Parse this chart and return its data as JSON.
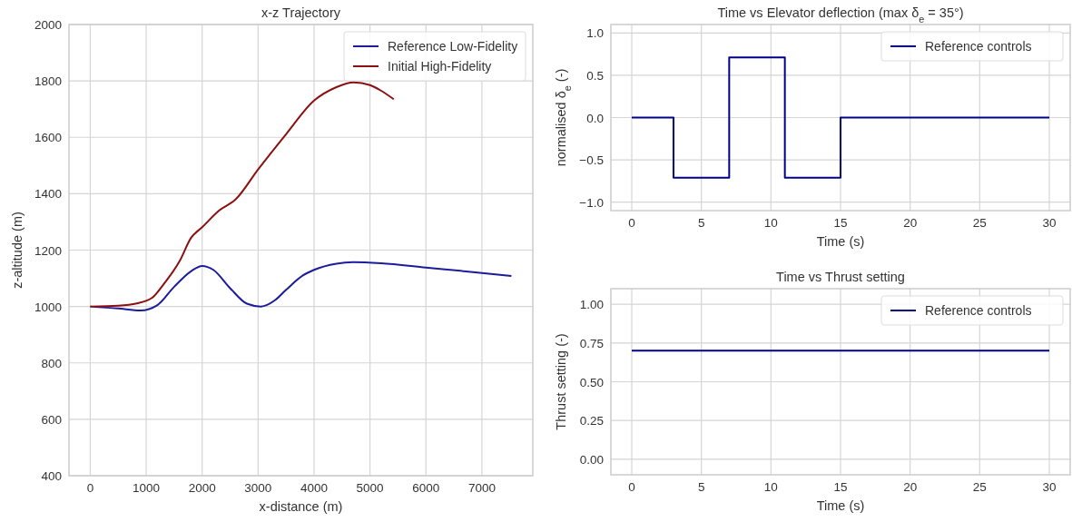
{
  "chart_data": [
    {
      "type": "line",
      "title": "x-z Trajectory",
      "xlabel": "x-distance (m)",
      "ylabel": "z-altitude (m)",
      "xlim": [
        -380,
        7910
      ],
      "ylim": [
        400,
        2000
      ],
      "xticks": [
        0,
        1000,
        2000,
        3000,
        4000,
        5000,
        6000,
        7000
      ],
      "yticks": [
        400,
        600,
        800,
        1000,
        1200,
        1400,
        1600,
        1800,
        2000
      ],
      "grid": true,
      "legend": "top right",
      "series": [
        {
          "name": "Reference Low-Fidelity",
          "color": "#1c1c9c",
          "x": [
            0,
            500,
            900,
            1200,
            1500,
            1800,
            2000,
            2200,
            2500,
            2800,
            3050,
            3300,
            3500,
            3800,
            4000,
            4400,
            4700,
            5200,
            6000,
            6800,
            7527
          ],
          "values": [
            1000,
            993,
            986,
            1005,
            1070,
            1125,
            1144,
            1130,
            1065,
            1010,
            1000,
            1022,
            1059,
            1110,
            1130,
            1152,
            1157,
            1153,
            1138,
            1123,
            1108
          ]
        },
        {
          "name": "Initial High-Fidelity",
          "color": "#8b1010",
          "x": [
            0,
            500,
            830,
            1100,
            1300,
            1600,
            1800,
            2000,
            2300,
            2600,
            3000,
            3500,
            4000,
            4400,
            4707,
            5000,
            5200,
            5424
          ],
          "values": [
            1000,
            1003,
            1011,
            1030,
            1076,
            1162,
            1243,
            1281,
            1340,
            1380,
            1486,
            1611,
            1730,
            1778,
            1795,
            1785,
            1765,
            1735
          ]
        }
      ]
    },
    {
      "type": "step",
      "title": "Time vs Elevator deflection (max δ$_{e}$ = 35°)",
      "xlabel": "Time (s)",
      "ylabel": "normalised δ$_{e}$ (-)",
      "xlim": [
        -1.5,
        31.5
      ],
      "ylim": [
        -1.1,
        1.1
      ],
      "xticks": [
        0,
        5,
        10,
        15,
        20,
        25,
        30
      ],
      "yticks": [
        {
          "value": -1,
          "label": "−1.0"
        },
        {
          "value": -0.5,
          "label": "−0.5"
        },
        {
          "value": 0,
          "label": "0.0"
        },
        {
          "value": 0.5,
          "label": "0.5"
        },
        {
          "value": 1,
          "label": "1.0"
        }
      ],
      "grid": true,
      "legend": "top right",
      "series": [
        {
          "name": "Reference controls",
          "color": "#00008b",
          "x": [
            0,
            3,
            7,
            11,
            15,
            30
          ],
          "values": [
            0,
            -0.71,
            0.71,
            -0.71,
            0,
            0
          ]
        }
      ]
    },
    {
      "type": "line",
      "title": "Time vs Thrust setting",
      "xlabel": "Time (s)",
      "ylabel": "Thrust setting (-)",
      "xlim": [
        -1.5,
        31.5
      ],
      "ylim": [
        -0.1,
        1.1
      ],
      "xticks": [
        0,
        5,
        10,
        15,
        20,
        25,
        30
      ],
      "yticks": [
        {
          "value": 0,
          "label": "0.00"
        },
        {
          "value": 0.25,
          "label": "0.25"
        },
        {
          "value": 0.5,
          "label": "0.50"
        },
        {
          "value": 0.75,
          "label": "0.75"
        },
        {
          "value": 1,
          "label": "1.00"
        }
      ],
      "grid": true,
      "legend": "top right",
      "series": [
        {
          "name": "Reference controls",
          "color": "#00008b",
          "x": [
            0,
            30
          ],
          "values": [
            0.7,
            0.7
          ]
        }
      ]
    }
  ]
}
